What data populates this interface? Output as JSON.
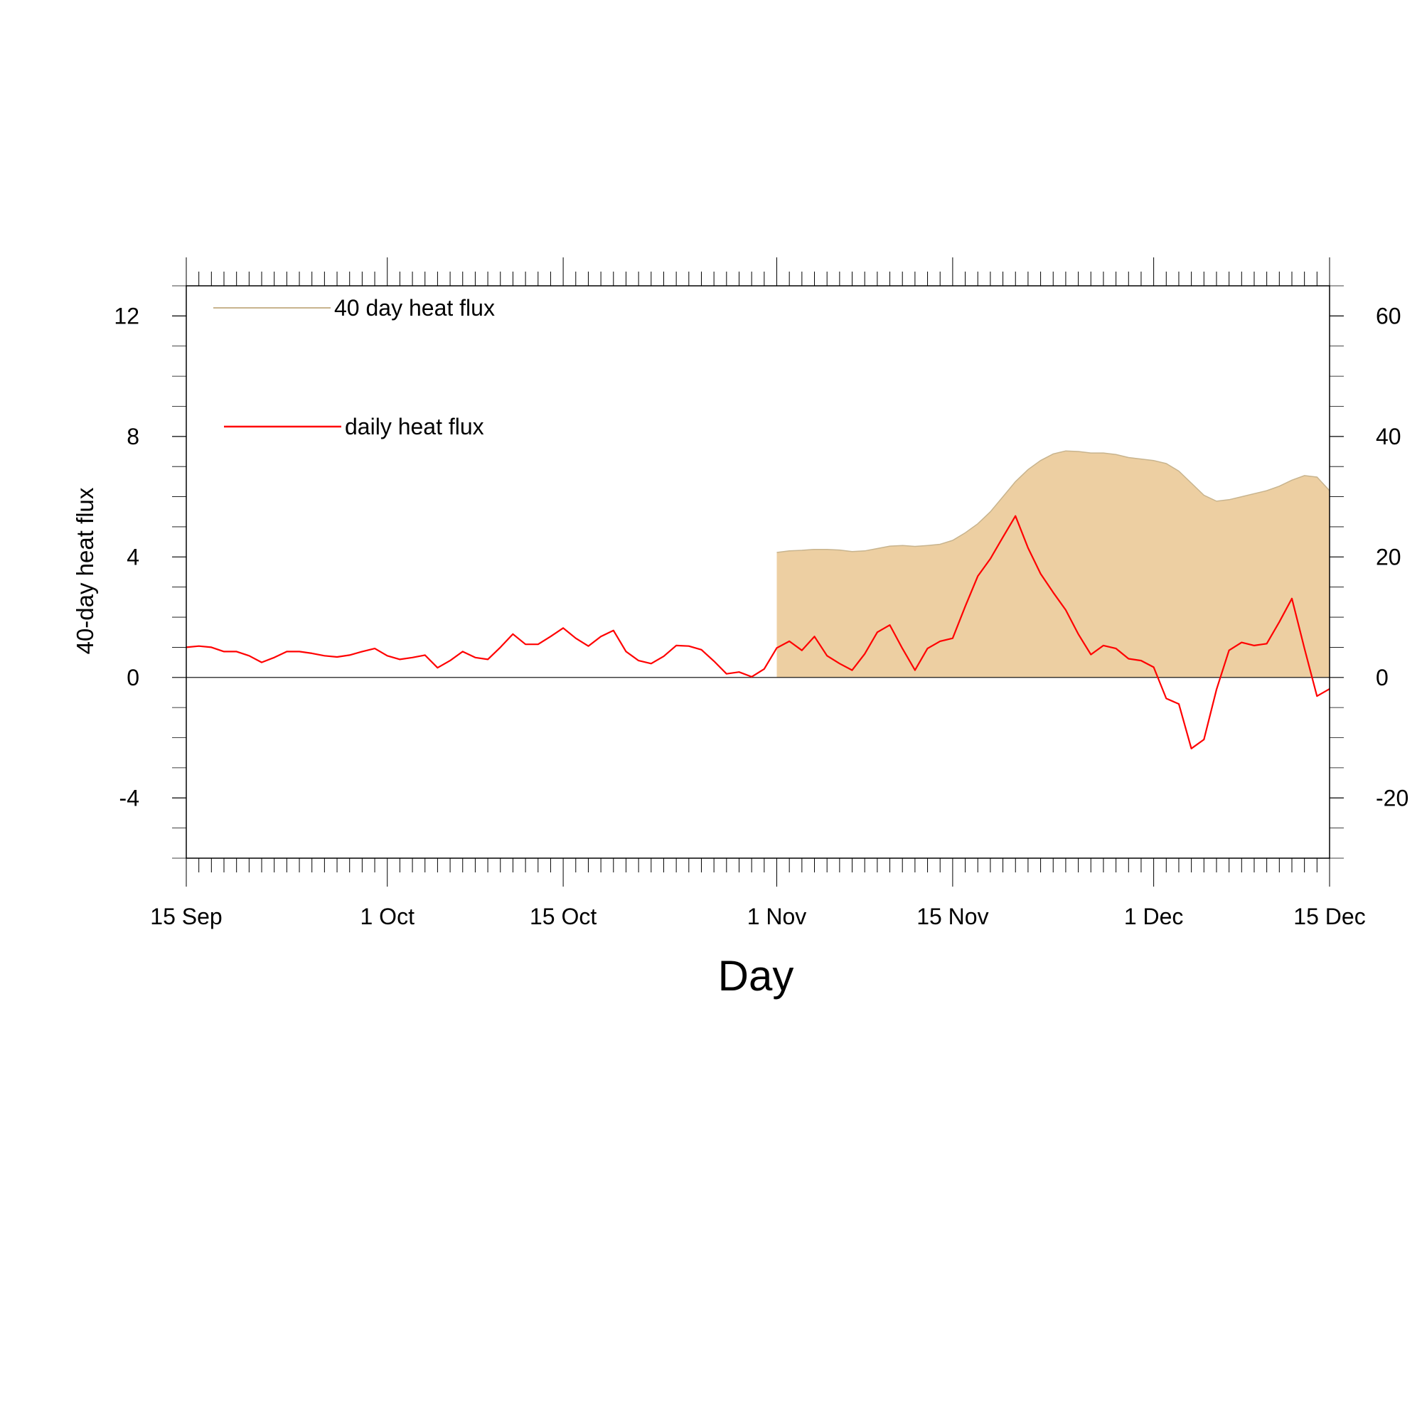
{
  "chart_data": {
    "type": "line",
    "xlabel": "Day",
    "ylabel": "40-day heat flux",
    "x_ticks": [
      "15 Sep",
      "1 Oct",
      "15 Oct",
      "1 Nov",
      "15 Nov",
      "1 Dec",
      "15 Dec"
    ],
    "x_tick_days": [
      0,
      16,
      30,
      47,
      61,
      77,
      91
    ],
    "xlim": [
      0,
      91
    ],
    "ylim_left": [
      -6,
      13
    ],
    "yticks_left": [
      -4,
      0,
      4,
      8,
      12
    ],
    "ylim_right": [
      -30,
      65
    ],
    "yticks_right": [
      -20,
      0,
      20,
      40,
      60
    ],
    "zero_line": true,
    "legend_placement": "top-left",
    "series": [
      {
        "name": "40 day heat flux",
        "kind": "area",
        "axis": "left",
        "color": "#EDCFA2",
        "edge_color": "#C8B48E",
        "x": [
          47,
          48,
          49,
          50,
          51,
          52,
          53,
          54,
          55,
          56,
          57,
          58,
          59,
          60,
          61,
          62,
          63,
          64,
          65,
          66,
          67,
          68,
          69,
          70,
          71,
          72,
          73,
          74,
          75,
          76,
          77,
          78,
          79,
          80,
          81,
          82,
          83,
          84,
          85,
          86,
          87,
          88,
          89,
          90,
          91
        ],
        "values": [
          4.15,
          4.2,
          4.22,
          4.25,
          4.25,
          4.23,
          4.18,
          4.2,
          4.28,
          4.36,
          4.38,
          4.35,
          4.38,
          4.42,
          4.55,
          4.8,
          5.1,
          5.5,
          6.0,
          6.5,
          6.9,
          7.2,
          7.42,
          7.52,
          7.5,
          7.45,
          7.45,
          7.4,
          7.3,
          7.25,
          7.2,
          7.1,
          6.85,
          6.45,
          6.05,
          5.85,
          5.9,
          6.0,
          6.1,
          6.2,
          6.35,
          6.55,
          6.7,
          6.65,
          6.2
        ]
      },
      {
        "name": "daily heat flux",
        "kind": "line",
        "axis": "right",
        "color": "#FF0000",
        "x": [
          0,
          1,
          2,
          3,
          4,
          5,
          6,
          7,
          8,
          9,
          10,
          11,
          12,
          13,
          14,
          15,
          16,
          17,
          18,
          19,
          20,
          21,
          22,
          23,
          24,
          25,
          26,
          27,
          28,
          29,
          30,
          31,
          32,
          33,
          34,
          35,
          36,
          37,
          38,
          39,
          40,
          41,
          42,
          43,
          44,
          45,
          46,
          47,
          48,
          49,
          50,
          51,
          52,
          53,
          54,
          55,
          56,
          57,
          58,
          59,
          60,
          61,
          62,
          63,
          64,
          65,
          66,
          67,
          68,
          69,
          70,
          71,
          72,
          73,
          74,
          75,
          76,
          77,
          78,
          79,
          80,
          81,
          82,
          83,
          84,
          85,
          86,
          87,
          88,
          89,
          90,
          91
        ],
        "values": [
          5.0,
          5.2,
          5.0,
          4.3,
          4.3,
          3.6,
          2.5,
          3.3,
          4.3,
          4.3,
          4.0,
          3.6,
          3.4,
          3.7,
          4.3,
          4.8,
          3.6,
          3.0,
          3.3,
          3.7,
          1.6,
          2.8,
          4.3,
          3.3,
          3.0,
          5.0,
          7.2,
          5.5,
          5.5,
          6.8,
          8.2,
          6.5,
          5.2,
          6.8,
          7.8,
          4.3,
          2.8,
          2.3,
          3.5,
          5.3,
          5.2,
          4.6,
          2.7,
          0.6,
          0.9,
          0.1,
          1.4,
          4.9,
          6.0,
          4.5,
          6.8,
          3.6,
          2.3,
          1.2,
          3.9,
          7.5,
          8.7,
          4.8,
          1.2,
          4.8,
          6.0,
          6.5,
          11.8,
          16.8,
          19.7,
          23.3,
          26.8,
          21.5,
          17.2,
          14.1,
          11.2,
          7.2,
          3.8,
          5.3,
          4.8,
          3.1,
          2.8,
          1.7,
          -3.5,
          -4.4,
          -11.8,
          -10.3,
          -2.0,
          4.5,
          5.8,
          5.3,
          5.6,
          9.2,
          13.1,
          4.8,
          -3.1,
          -1.9
        ]
      }
    ]
  }
}
